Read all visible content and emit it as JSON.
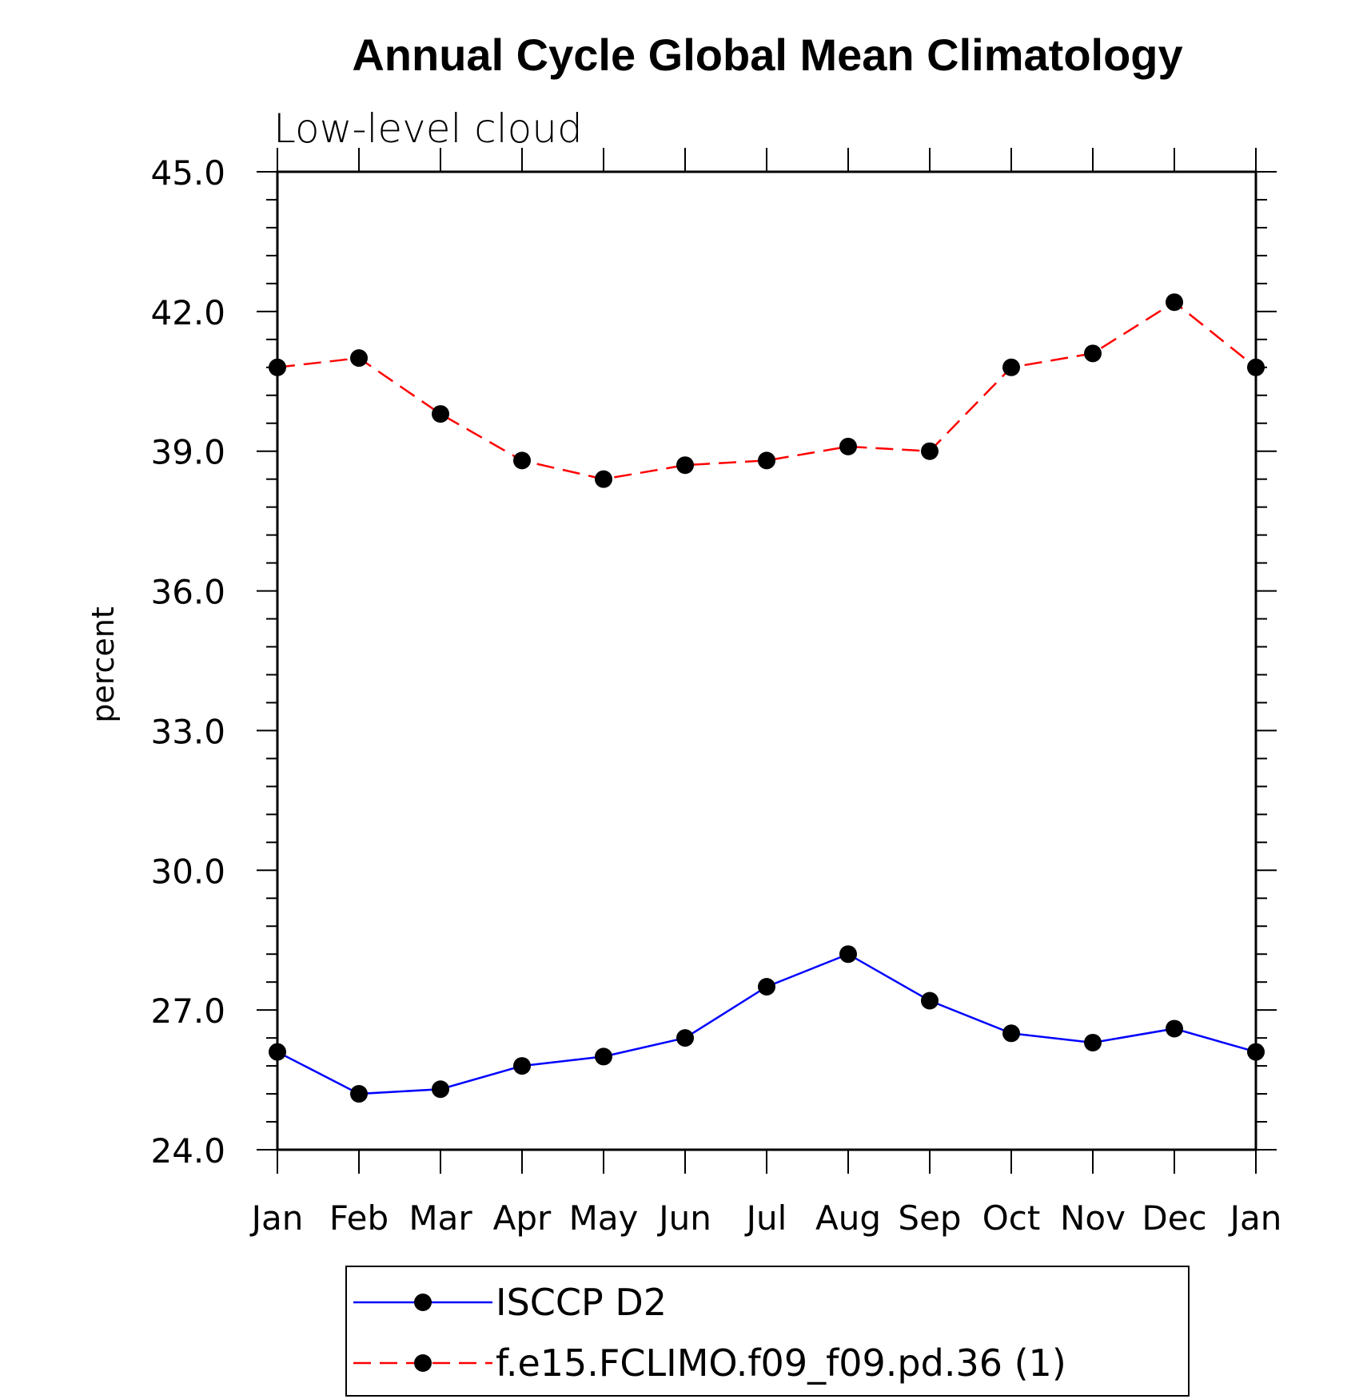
{
  "chart_data": {
    "type": "line",
    "title": "Annual Cycle Global Mean Climatology",
    "subtitle": "Low-level cloud",
    "ylabel": "percent",
    "xlabel": "",
    "categories": [
      "Jan",
      "Feb",
      "Mar",
      "Apr",
      "May",
      "Jun",
      "Jul",
      "Aug",
      "Sep",
      "Oct",
      "Nov",
      "Dec",
      "Jan"
    ],
    "ylim": [
      24.0,
      45.0
    ],
    "yticks": [
      "24.0",
      "27.0",
      "30.0",
      "33.0",
      "36.0",
      "39.0",
      "42.0",
      "45.0"
    ],
    "series": [
      {
        "name": "ISCCP D2",
        "color": "#0000ff",
        "line_style": "solid",
        "marker": "filled-circle",
        "values": [
          26.1,
          25.2,
          25.3,
          25.8,
          26.0,
          26.4,
          27.5,
          28.2,
          27.2,
          26.5,
          26.3,
          26.6,
          26.1
        ]
      },
      {
        "name": "f.e15.FCLIMO.f09_f09.pd.36 (1)",
        "color": "#ff0000",
        "line_style": "dashed",
        "marker": "filled-circle",
        "values": [
          40.8,
          41.0,
          39.8,
          38.8,
          38.4,
          38.7,
          38.8,
          39.1,
          39.0,
          40.8,
          41.1,
          42.2,
          40.8
        ]
      }
    ],
    "grid": false,
    "legend_position": "bottom-center"
  }
}
